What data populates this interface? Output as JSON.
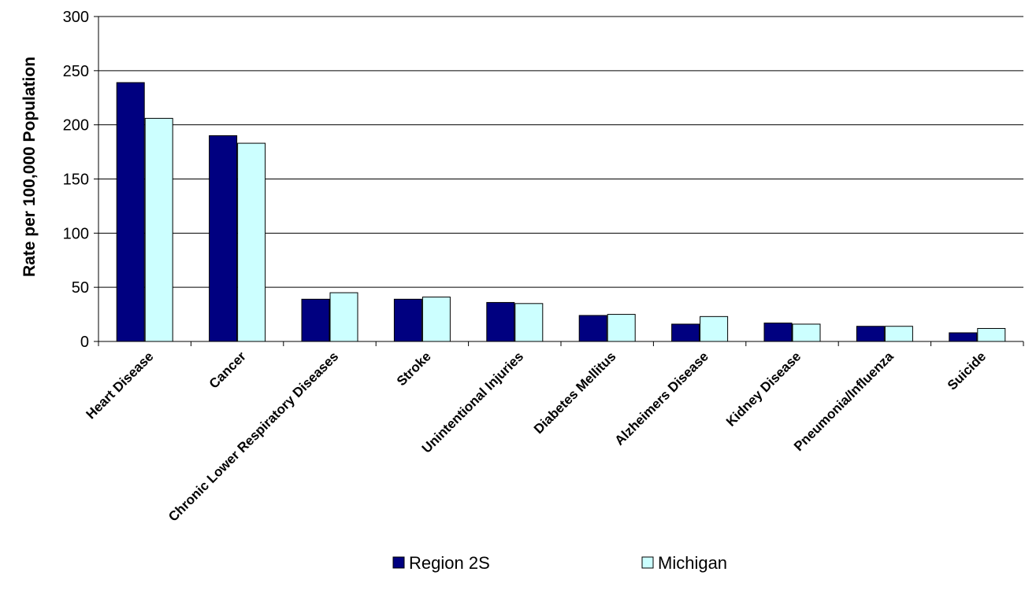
{
  "chart_data": {
    "type": "bar",
    "title": "",
    "xlabel": "",
    "ylabel": "Rate per 100,000 Population",
    "ylim": [
      0,
      300
    ],
    "yticks": [
      0,
      50,
      100,
      150,
      200,
      250,
      300
    ],
    "grid": true,
    "legend_position": "bottom",
    "categories": [
      "Heart Disease",
      "Cancer",
      "Chronic Lower Respiratory Diseases",
      "Stroke",
      "Unintentional Injuries",
      "Diabetes Mellitus",
      "Alzheimers Disease",
      "Kidney Disease",
      "Pneumonia/Influenza",
      "Suicide"
    ],
    "series": [
      {
        "name": "Region 2S",
        "color": "#000080",
        "values": [
          239,
          190,
          39,
          39,
          36,
          24,
          16,
          17,
          14,
          8
        ]
      },
      {
        "name": "Michigan",
        "color": "#ccffff",
        "values": [
          206,
          183,
          45,
          41,
          35,
          25,
          23,
          16,
          14,
          12
        ]
      }
    ]
  }
}
